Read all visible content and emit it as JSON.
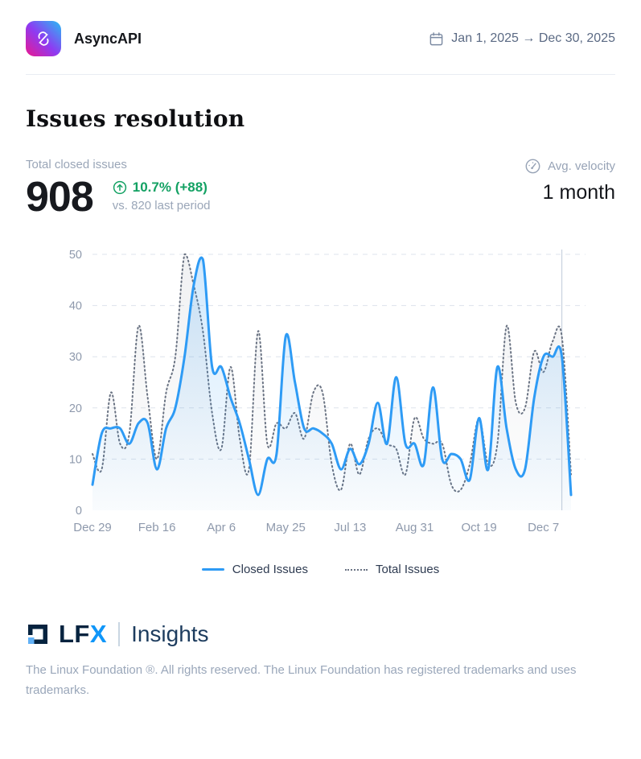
{
  "header": {
    "app_name": "AsyncAPI",
    "date_range": "Jan 1, 2025 → Dec 30, 2025"
  },
  "page": {
    "title": "Issues resolution"
  },
  "stats": {
    "total_label": "Total closed issues",
    "total_value": "908",
    "delta_text": "10.7% (+88)",
    "delta_direction": "up",
    "comparison_text": "vs. 820 last period",
    "velocity_label": "Avg. velocity",
    "velocity_value": "1 month"
  },
  "colors": {
    "closed_line": "#2e9bf5",
    "total_line": "#6a7383",
    "positive_green": "#13a163",
    "grid": "#dde3ec",
    "axis_text": "#8e99ac",
    "marker_line": "#c9d2de"
  },
  "chart_data": {
    "type": "line",
    "title": "Issues resolution over time",
    "xlabel": "",
    "ylabel": "",
    "ylim": [
      0,
      50
    ],
    "y_ticks": [
      0,
      10,
      20,
      30,
      40,
      50
    ],
    "grid": "dashed-horizontal",
    "legend_position": "bottom",
    "x_unit": "week",
    "x_tick_labels": [
      "Dec 29",
      "Feb 16",
      "Apr 6",
      "May 25",
      "Jul 13",
      "Aug 31",
      "Oct 19",
      "Dec 7"
    ],
    "x_tick_indices": [
      0,
      7,
      14,
      21,
      28,
      35,
      42,
      49
    ],
    "current_period_marker_index": 51,
    "series": [
      {
        "name": "Total Issues",
        "style": "dotted",
        "color": "#6a7383",
        "values": [
          11,
          8,
          23,
          13,
          15,
          36,
          22,
          10,
          23,
          30,
          50,
          44,
          35,
          19,
          12,
          28,
          14,
          8,
          35,
          13,
          17,
          16,
          19,
          14,
          23,
          23,
          9,
          4,
          13,
          7,
          14,
          16,
          13,
          12,
          7,
          18,
          14,
          13,
          13,
          5,
          4,
          9,
          18,
          9,
          13,
          36,
          21,
          20,
          31,
          27,
          33,
          34,
          7
        ]
      },
      {
        "name": "Closed Issues",
        "style": "solid",
        "color": "#2e9bf5",
        "values": [
          5,
          15,
          16,
          16,
          13,
          17,
          17,
          8,
          16,
          20,
          30,
          44,
          49,
          28,
          28,
          22,
          17,
          10,
          3,
          10,
          11,
          34,
          25,
          16,
          16,
          15,
          13,
          8,
          12,
          9,
          13,
          21,
          13,
          26,
          13,
          13,
          9,
          24,
          10,
          11,
          10,
          6,
          18,
          8,
          28,
          16,
          8,
          8,
          22,
          30,
          30,
          30,
          3
        ]
      }
    ]
  },
  "footer": {
    "brand_word_prefix": "LF",
    "brand_word_suffix": "X",
    "brand_product": "Insights",
    "copyright": "The Linux Foundation ®. All rights reserved. The Linux Foundation has registered trademarks and uses trademarks."
  }
}
